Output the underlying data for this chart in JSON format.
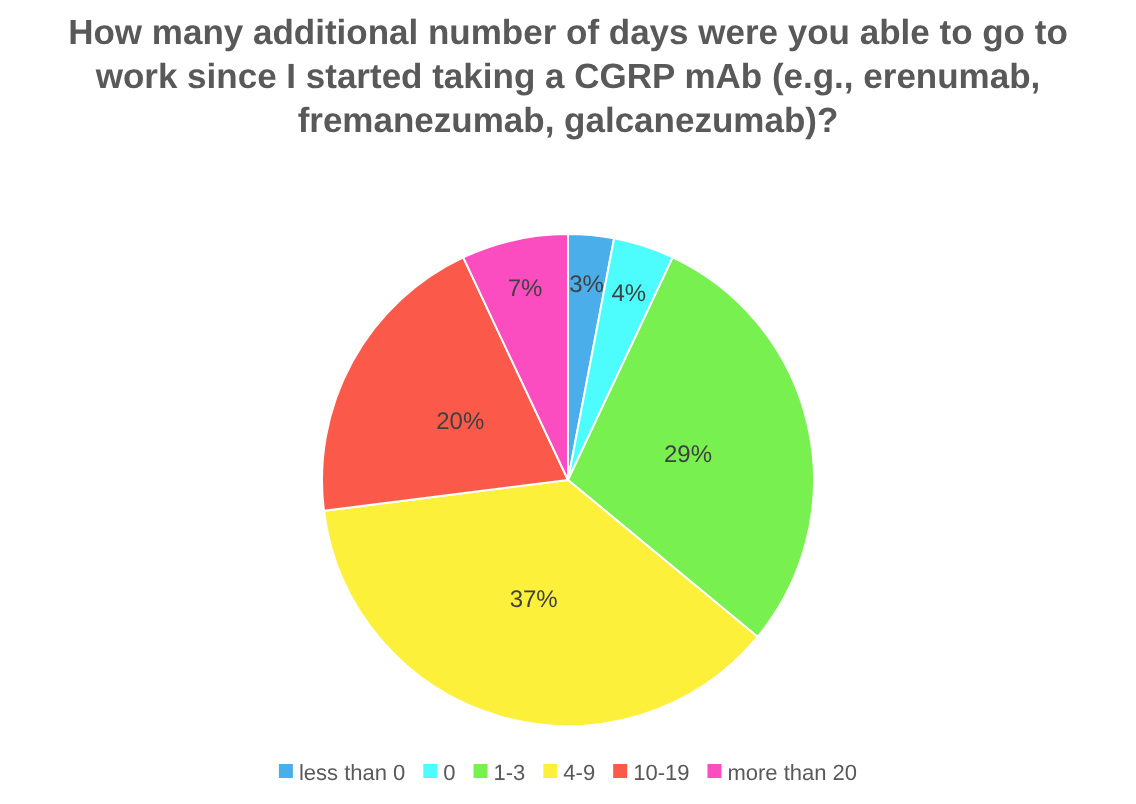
{
  "chart_data": {
    "type": "pie",
    "title": "How many additional number of days were you able to go to work since I started taking a CGRP mAb (e.g., erenumab, fremanezumab, galcanezumab)?",
    "categories": [
      "less than 0",
      "0",
      "1-3",
      "4-9",
      "10-19",
      "more than 20"
    ],
    "values": [
      3,
      4,
      29,
      37,
      20,
      7
    ],
    "colors": [
      "#4aaeea",
      "#4dfdfd",
      "#77f050",
      "#fcf03a",
      "#fb5a4a",
      "#fb4cc0"
    ],
    "value_labels": [
      "3%",
      "4%",
      "29%",
      "37%",
      "20%",
      "7%"
    ],
    "legend": "bottom"
  }
}
